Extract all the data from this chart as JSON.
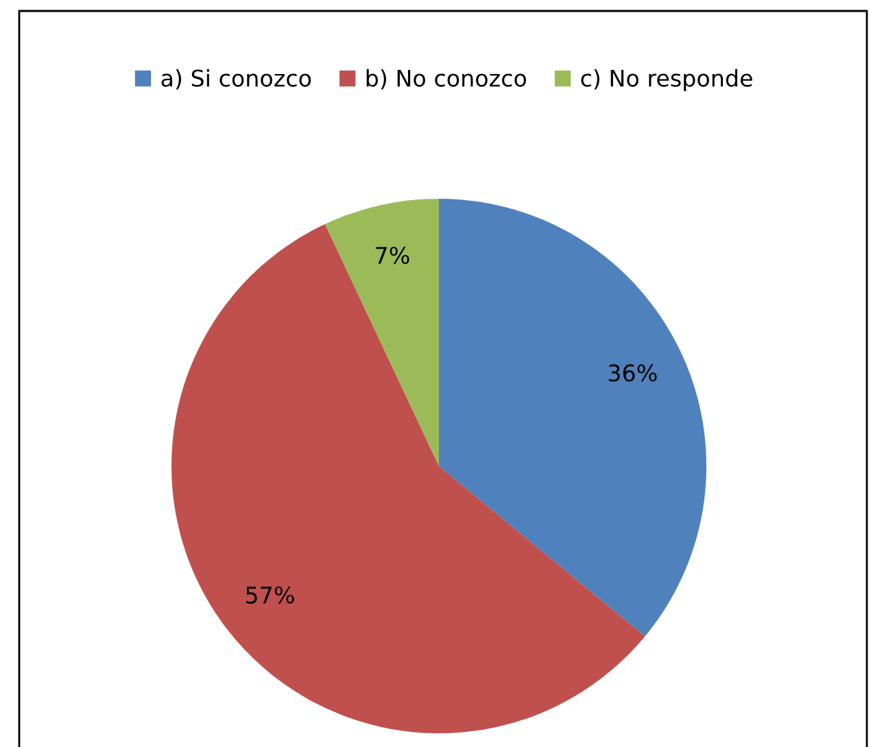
{
  "chart_data": {
    "type": "pie",
    "categories": [
      "a) Si conozco",
      "b) No conozco",
      "c) No responde"
    ],
    "values": [
      36,
      57,
      7
    ],
    "colors": [
      "#4f81bd",
      "#c0504d",
      "#9bbb59"
    ],
    "value_labels": [
      "36%",
      "57%",
      "7%"
    ],
    "legend": "top"
  }
}
